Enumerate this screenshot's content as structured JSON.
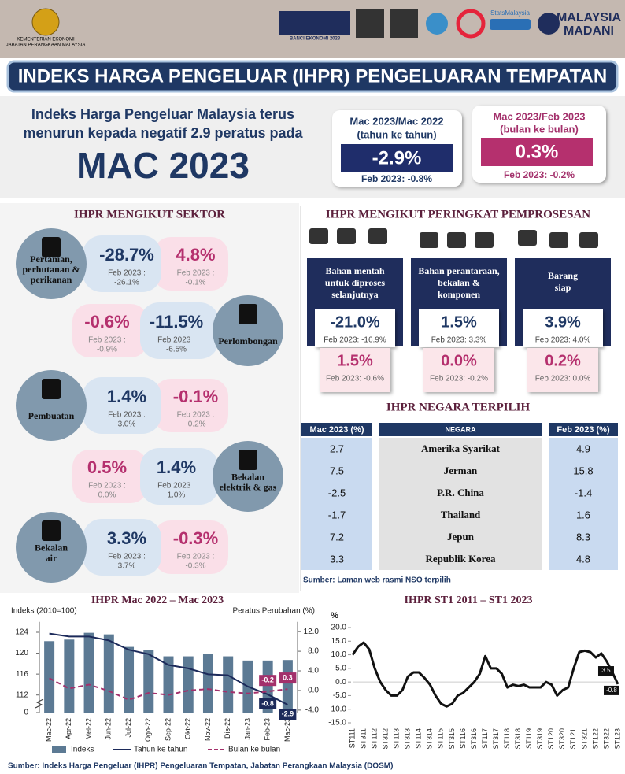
{
  "header": {
    "ministry": [
      "KEMENTERIAN EKONOMI",
      "JABATAN PERANGKAAN MALAYSIA"
    ],
    "census": "BANCI EKONOMI 2023",
    "stats": "StatsMalaysia",
    "brand": [
      "MALAYSIA",
      "MADANI"
    ]
  },
  "title": "INDEKS HARGA PENGELUAR (IHPR) PENGELUARAN TEMPATAN",
  "headline": {
    "lines": [
      "Indeks Harga Pengeluar Malaysia terus",
      "menurun kepada negatif 2.9 peratus pada"
    ],
    "month": "MAC 2023"
  },
  "yoy_box": {
    "period": "Mac 2023/Mac 2022",
    "basis": "(tahun ke tahun)",
    "value": "-2.9%",
    "previous": "Feb 2023: -0.8%"
  },
  "mom_box": {
    "period": "Mac 2023/Feb 2023",
    "basis": "(bulan ke bulan)",
    "value": "0.3%",
    "previous": "Feb 2023: -0.2%"
  },
  "sectors": {
    "heading": "IHPR MENGIKUT SEKTOR",
    "prev_label": "Feb 2023 :",
    "items": [
      {
        "name": [
          "Pertanian,",
          "perhutanan &",
          "perikanan"
        ],
        "yoy": "-28.7%",
        "yoy_prev": "-26.1%",
        "mom": "4.8%",
        "mom_prev": "-0.1%"
      },
      {
        "name": [
          "Perlombongan"
        ],
        "yoy": "-11.5%",
        "yoy_prev": "-6.5%",
        "mom": "-0.6%",
        "mom_prev": "-0.9%"
      },
      {
        "name": [
          "Pembuatan"
        ],
        "yoy": "1.4%",
        "yoy_prev": "3.0%",
        "mom": "-0.1%",
        "mom_prev": "-0.2%"
      },
      {
        "name": [
          "Bekalan",
          "elektrik & gas"
        ],
        "yoy": "1.4%",
        "yoy_prev": "1.0%",
        "mom": "0.5%",
        "mom_prev": "0.0%"
      },
      {
        "name": [
          "Bekalan",
          "air"
        ],
        "yoy": "3.3%",
        "yoy_prev": "3.7%",
        "mom": "-0.3%",
        "mom_prev": "-0.3%"
      }
    ]
  },
  "stages": {
    "heading": "IHPR MENGIKUT PERINGKAT PEMPROSESAN",
    "items": [
      {
        "name": [
          "Bahan mentah",
          "untuk diproses",
          "selanjutnya"
        ],
        "yoy": "-21.0%",
        "yoy_prev": "Feb 2023: -16.9%",
        "mom": "1.5%",
        "mom_prev": "Feb 2023: -0.6%"
      },
      {
        "name": [
          "Bahan perantaraan,",
          "bekalan &",
          "komponen"
        ],
        "yoy": "1.5%",
        "yoy_prev": "Feb 2023: 3.3%",
        "mom": "0.0%",
        "mom_prev": "Feb 2023: -0.2%"
      },
      {
        "name": [
          "Barang",
          "siap"
        ],
        "yoy": "3.9%",
        "yoy_prev": "Feb 2023: 4.0%",
        "mom": "0.2%",
        "mom_prev": "Feb 2023: 0.0%"
      }
    ]
  },
  "countries": {
    "heading": "IHPR NEGARA TERPILIH",
    "columns": [
      "Mac 2023 (%)",
      "NEGARA",
      "Feb 2023 (%)"
    ],
    "rows": [
      [
        "2.7",
        "Amerika Syarikat",
        "4.9"
      ],
      [
        "7.5",
        "Jerman",
        "15.8"
      ],
      [
        "-2.5",
        "P.R. China",
        "-1.4"
      ],
      [
        "-1.7",
        "Thailand",
        "1.6"
      ],
      [
        "7.2",
        "Jepun",
        "8.3"
      ],
      [
        "3.3",
        "Republik Korea",
        "4.8"
      ]
    ],
    "source": "Sumber: Laman web rasmi NSO terpilih"
  },
  "chart_data": [
    {
      "type": "bar_line",
      "title": "IHPR Mac 2022  – Mac 2023",
      "y_label": "Indeks (2010=100)",
      "y2_label": "Peratus Perubahan (%)",
      "categories": [
        "Mac-22",
        "Apr-22",
        "Mei-22",
        "Jun-22",
        "Jul-22",
        "Ogo-22",
        "Sep-22",
        "Okt-22",
        "Nov-22",
        "Dis-22",
        "Jan-23",
        "Feb-23",
        "Mac-23"
      ],
      "ylim": [
        0,
        126
      ],
      "yticks": [
        0,
        112,
        116,
        120,
        124
      ],
      "axis_break": [
        0,
        110
      ],
      "y2lim": [
        -4.5,
        14
      ],
      "y2ticks": [
        {
          "value": 12,
          "label": "12.0"
        },
        {
          "value": 8,
          "label": "8.0"
        },
        {
          "value": 4,
          "label": "4.0"
        },
        {
          "value": 0,
          "label": "0.0"
        },
        {
          "value": -4,
          "label": "-4.0"
        }
      ],
      "series": [
        {
          "name": "Indeks",
          "color": "#5c7a94",
          "values": [
            122.3,
            122.6,
            123.9,
            123.6,
            121.2,
            120.6,
            119.4,
            119.4,
            119.8,
            119.4,
            118.6,
            118.6,
            118.7
          ]
        },
        {
          "name": "Tahun ke tahun",
          "color": "#1c2a5a",
          "axis": "y2",
          "values": [
            11.6,
            11.0,
            11.0,
            10.2,
            8.3,
            7.4,
            5.2,
            4.5,
            3.3,
            3.1,
            0.8,
            -0.8,
            -2.9
          ],
          "value_labels": [
            null,
            null,
            null,
            null,
            null,
            null,
            null,
            null,
            null,
            null,
            null,
            "-0.8",
            "-2.9"
          ]
        },
        {
          "name": "Bulan ke bulan",
          "color": "#a3306b",
          "axis": "y2",
          "dashed": true,
          "values": [
            2.5,
            0.4,
            1.2,
            -0.1,
            -1.9,
            -0.5,
            -0.9,
            0.0,
            0.3,
            -0.3,
            -0.6,
            -0.2,
            0.3
          ],
          "value_labels": [
            null,
            null,
            null,
            null,
            null,
            null,
            null,
            null,
            null,
            null,
            null,
            "-0.2",
            "0.3"
          ]
        }
      ]
    },
    {
      "type": "line",
      "title": "IHPR ST1 2011 – ST1 2023",
      "y_label": "%",
      "categories": [
        "ST111",
        null,
        "ST311",
        null,
        "ST112",
        null,
        "ST312",
        null,
        "ST113",
        null,
        "ST313",
        null,
        "ST114",
        null,
        "ST314",
        null,
        "ST115",
        null,
        "ST315",
        null,
        "ST116",
        null,
        "ST316",
        null,
        "ST117",
        null,
        "ST317",
        null,
        "ST118",
        null,
        "ST318",
        null,
        "ST119",
        null,
        "ST319",
        null,
        "ST120",
        null,
        "ST320",
        null,
        "ST121",
        null,
        "ST321",
        null,
        "ST122",
        null,
        "ST322",
        null,
        "ST123"
      ],
      "ylim": [
        -15,
        20
      ],
      "yticks": [
        {
          "value": 20,
          "label": "20.0"
        },
        {
          "value": 15,
          "label": "15.0"
        },
        {
          "value": 10,
          "label": "10.0"
        },
        {
          "value": 5,
          "label": "5.0"
        },
        {
          "value": 0,
          "label": "0.0"
        },
        {
          "value": -5,
          "label": "-5.0"
        },
        {
          "value": -10,
          "label": "-10.0"
        },
        {
          "value": -15,
          "label": "-15.0"
        }
      ],
      "series": [
        {
          "color": "#111111",
          "values": [
            10,
            13,
            14.5,
            12,
            5,
            0,
            -3,
            -5,
            -5,
            -3,
            2,
            3.5,
            3.5,
            1.5,
            -1,
            -5,
            -8,
            -9,
            -8,
            -5,
            -4,
            -2,
            0,
            3,
            9.5,
            5,
            5,
            3,
            -2,
            -1,
            -1.5,
            -1,
            -2,
            -2,
            -2,
            0,
            -1,
            -5,
            -3,
            -2,
            5,
            11,
            11.5,
            11,
            9,
            10.5,
            7.5,
            3.5,
            -0.8
          ],
          "value_labels": [
            null,
            null,
            null,
            null,
            null,
            null,
            null,
            null,
            null,
            null,
            null,
            null,
            null,
            null,
            null,
            null,
            null,
            null,
            null,
            null,
            null,
            null,
            null,
            null,
            null,
            null,
            null,
            null,
            null,
            null,
            null,
            null,
            null,
            null,
            null,
            null,
            null,
            null,
            null,
            null,
            null,
            null,
            null,
            null,
            null,
            null,
            null,
            "3.5",
            "-0.8"
          ]
        }
      ]
    }
  ],
  "footer": "Sumber: Indeks Harga Pengeluar (IHPR) Pengeluaran Tempatan, Jabatan Perangkaan Malaysia (DOSM)"
}
